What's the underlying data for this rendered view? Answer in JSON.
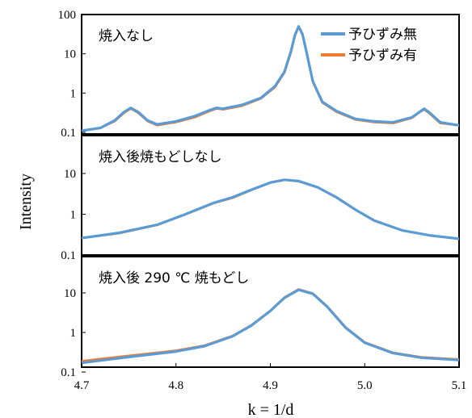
{
  "chart_data": {
    "type": "line",
    "xlabel": "k = 1/d",
    "ylabel": "Intensity",
    "xlim": [
      4.7,
      5.1
    ],
    "x_ticks": [
      "4.7",
      "4.8",
      "4.9",
      "5.0",
      "5.1"
    ],
    "y_scale": "log",
    "grid": false,
    "legend": {
      "placement": "top-right",
      "entries": [
        {
          "name": "予ひずみ無",
          "color": "#5b9bd5"
        },
        {
          "name": "予ひずみ有",
          "color": "#ed7d31"
        }
      ]
    },
    "panels": [
      {
        "label": "焼入なし",
        "ylim": [
          0.1,
          100
        ],
        "y_ticks": [
          "0.1",
          "1",
          "10",
          "100"
        ],
        "series": [
          {
            "name": "予ひずみ無",
            "color": "#5b9bd5",
            "x": [
              4.7,
              4.72,
              4.735,
              4.745,
              4.752,
              4.76,
              4.77,
              4.78,
              4.8,
              4.82,
              4.835,
              4.843,
              4.85,
              4.87,
              4.89,
              4.905,
              4.915,
              4.922,
              4.926,
              4.93,
              4.934,
              4.938,
              4.945,
              4.955,
              4.97,
              4.99,
              5.01,
              5.03,
              5.05,
              5.058,
              5.063,
              5.068,
              5.08,
              5.1
            ],
            "y": [
              0.11,
              0.13,
              0.2,
              0.33,
              0.42,
              0.33,
              0.2,
              0.16,
              0.19,
              0.26,
              0.36,
              0.42,
              0.4,
              0.5,
              0.75,
              1.5,
              3.5,
              12,
              30,
              50,
              32,
              12,
              2.0,
              0.6,
              0.35,
              0.22,
              0.19,
              0.18,
              0.24,
              0.33,
              0.4,
              0.33,
              0.18,
              0.15
            ]
          },
          {
            "name": "予ひずみ有",
            "color": "#ed7d31",
            "x": [
              4.7,
              4.72,
              4.735,
              4.745,
              4.752,
              4.76,
              4.77,
              4.78,
              4.8,
              4.82,
              4.835,
              4.843,
              4.85,
              4.87,
              4.89,
              4.905,
              4.915,
              4.922,
              4.926,
              4.93,
              4.934,
              4.938,
              4.945,
              4.955,
              4.97,
              4.99,
              5.01,
              5.03,
              5.05,
              5.058,
              5.063,
              5.068,
              5.08,
              5.1
            ],
            "y": [
              0.11,
              0.13,
              0.19,
              0.31,
              0.4,
              0.31,
              0.19,
              0.15,
              0.18,
              0.24,
              0.34,
              0.4,
              0.38,
              0.47,
              0.72,
              1.4,
              3.3,
              11,
              28,
              48,
              30,
              11,
              1.9,
              0.57,
              0.33,
              0.21,
              0.18,
              0.17,
              0.23,
              0.32,
              0.38,
              0.31,
              0.17,
              0.15
            ]
          }
        ]
      },
      {
        "label": "焼入後焼もどしなし",
        "ylim": [
          0.1,
          30
        ],
        "y_ticks": [
          "0.1",
          "1",
          "10"
        ],
        "series": [
          {
            "name": "予ひずみ無",
            "color": "#5b9bd5",
            "x": [
              4.7,
              4.74,
              4.78,
              4.81,
              4.84,
              4.86,
              4.88,
              4.9,
              4.915,
              4.93,
              4.95,
              4.97,
              4.99,
              5.01,
              5.04,
              5.07,
              5.1
            ],
            "y": [
              0.26,
              0.35,
              0.55,
              1.0,
              1.9,
              2.6,
              4.0,
              6.0,
              7.0,
              6.5,
              4.6,
              2.6,
              1.3,
              0.7,
              0.4,
              0.3,
              0.25
            ]
          },
          {
            "name": "予ひずみ有",
            "color": "#ed7d31",
            "x": [
              4.7,
              4.74,
              4.78,
              4.81,
              4.84,
              4.86,
              4.88,
              4.9,
              4.915,
              4.93,
              4.95,
              4.97,
              4.99,
              5.01,
              5.04,
              5.07,
              5.1
            ],
            "y": [
              0.26,
              0.34,
              0.54,
              0.98,
              1.85,
              2.5,
              3.9,
              5.9,
              6.9,
              6.4,
              4.5,
              2.55,
              1.28,
              0.69,
              0.4,
              0.3,
              0.25
            ]
          }
        ]
      },
      {
        "label": "焼入後 290 ℃ 焼もどし",
        "ylim": [
          0.1,
          30
        ],
        "y_ticks": [
          "0.1",
          "1",
          "10"
        ],
        "series": [
          {
            "name": "予ひずみ無",
            "color": "#5b9bd5",
            "x": [
              4.7,
              4.75,
              4.8,
              4.83,
              4.86,
              4.88,
              4.9,
              4.915,
              4.93,
              4.945,
              4.96,
              4.98,
              5.0,
              5.03,
              5.06,
              5.1
            ],
            "y": [
              0.17,
              0.24,
              0.33,
              0.45,
              0.8,
              1.5,
              3.5,
              7.5,
              12,
              9.5,
              4.5,
              1.3,
              0.55,
              0.3,
              0.23,
              0.2
            ]
          },
          {
            "name": "予ひずみ有",
            "color": "#ed7d31",
            "x": [
              4.7,
              4.75,
              4.8,
              4.83,
              4.86,
              4.88,
              4.9,
              4.915,
              4.93,
              4.945,
              4.96,
              4.98,
              5.0,
              5.03,
              5.06,
              5.1
            ],
            "y": [
              0.19,
              0.26,
              0.35,
              0.47,
              0.83,
              1.55,
              3.6,
              7.8,
              12.5,
              9.8,
              4.7,
              1.35,
              0.57,
              0.31,
              0.24,
              0.21
            ]
          }
        ]
      }
    ]
  }
}
